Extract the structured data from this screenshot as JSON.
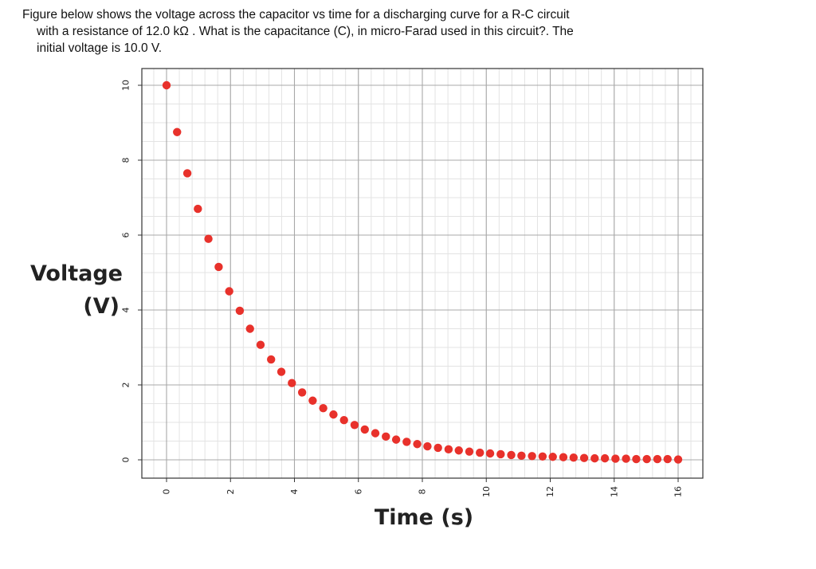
{
  "question": {
    "line1": "Figure below shows the voltage across the capacitor vs time for a discharging curve for a R-C circuit",
    "line2": "with a resistance of 12.0 kΩ . What is the capacitance (C), in micro-Farad used in this circuit?. The",
    "line3": "initial voltage is 10.0 V."
  },
  "chart_data": {
    "type": "scatter",
    "xlabel": "Time (s)",
    "ylabel_line1": "Voltage",
    "ylabel_line2": "(V)",
    "xlim": [
      0,
      16
    ],
    "ylim": [
      0,
      10
    ],
    "xticks": [
      "0",
      "2",
      "4",
      "6",
      "8",
      "10",
      "12",
      "14",
      "16"
    ],
    "yticks": [
      "0",
      "2",
      "4",
      "6",
      "8",
      "10"
    ],
    "grid": "major and minor",
    "point_color": "#e8312b",
    "points": [
      [
        0.0,
        10.0
      ],
      [
        0.33,
        8.75
      ],
      [
        0.65,
        7.65
      ],
      [
        0.98,
        6.7
      ],
      [
        1.31,
        5.9
      ],
      [
        1.63,
        5.15
      ],
      [
        1.96,
        4.5
      ],
      [
        2.29,
        3.98
      ],
      [
        2.61,
        3.5
      ],
      [
        2.94,
        3.07
      ],
      [
        3.27,
        2.68
      ],
      [
        3.59,
        2.35
      ],
      [
        3.92,
        2.05
      ],
      [
        4.24,
        1.8
      ],
      [
        4.57,
        1.58
      ],
      [
        4.9,
        1.38
      ],
      [
        5.22,
        1.21
      ],
      [
        5.55,
        1.06
      ],
      [
        5.88,
        0.93
      ],
      [
        6.2,
        0.81
      ],
      [
        6.53,
        0.71
      ],
      [
        6.86,
        0.62
      ],
      [
        7.18,
        0.54
      ],
      [
        7.51,
        0.48
      ],
      [
        7.84,
        0.42
      ],
      [
        8.16,
        0.36
      ],
      [
        8.49,
        0.32
      ],
      [
        8.82,
        0.28
      ],
      [
        9.14,
        0.25
      ],
      [
        9.47,
        0.22
      ],
      [
        9.8,
        0.19
      ],
      [
        10.12,
        0.17
      ],
      [
        10.45,
        0.15
      ],
      [
        10.78,
        0.13
      ],
      [
        11.1,
        0.11
      ],
      [
        11.43,
        0.1
      ],
      [
        11.76,
        0.09
      ],
      [
        12.08,
        0.08
      ],
      [
        12.41,
        0.07
      ],
      [
        12.73,
        0.06
      ],
      [
        13.06,
        0.05
      ],
      [
        13.39,
        0.04
      ],
      [
        13.71,
        0.04
      ],
      [
        14.04,
        0.03
      ],
      [
        14.37,
        0.03
      ],
      [
        14.69,
        0.02
      ],
      [
        15.02,
        0.02
      ],
      [
        15.35,
        0.02
      ],
      [
        15.67,
        0.02
      ],
      [
        16.0,
        0.01
      ]
    ]
  }
}
